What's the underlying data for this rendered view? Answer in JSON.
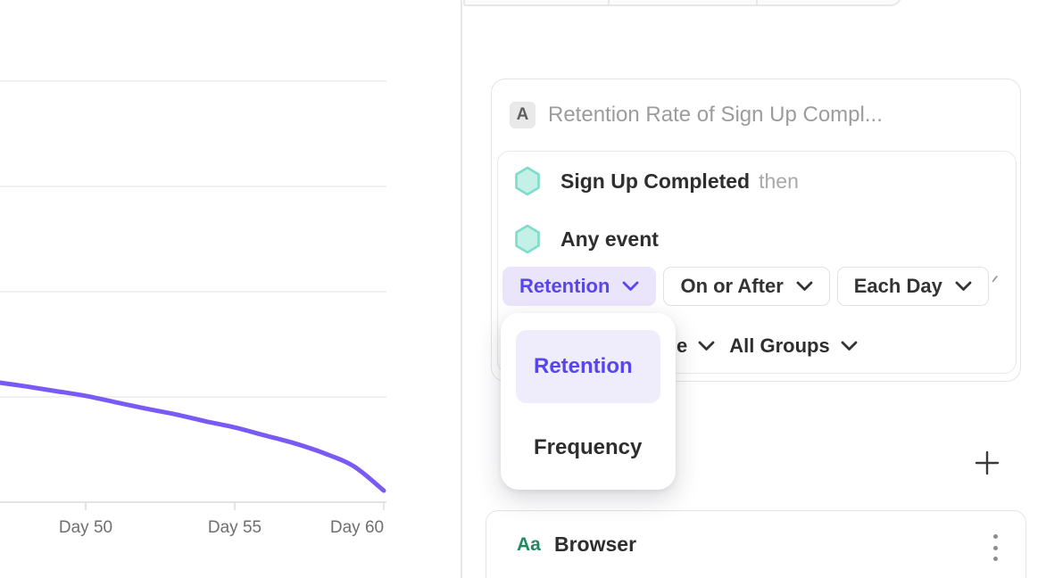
{
  "colors": {
    "accent_purple": "#5746EC",
    "accent_purple_bg": "#EAE5FB",
    "line_purple": "#7A5AF5",
    "event_hex_fill": "#C3F0E7",
    "event_hex_stroke": "#7EDCC9",
    "property_green": "#1F8A62",
    "text_dark": "#2E2E2E",
    "text_gray_placeholder": "#9C9C9C",
    "border_gray": "#E4E4E4"
  },
  "right_panel": {
    "query_card": {
      "series_badge": "A",
      "title_placeholder": "Retention Rate of Sign Up Compl...",
      "events": [
        {
          "name": "Sign Up Completed",
          "suffix": "then"
        },
        {
          "name": "Any event",
          "suffix": ""
        }
      ],
      "controls": [
        {
          "label": "Retention",
          "active": true
        },
        {
          "label": "On or After",
          "active": false
        },
        {
          "label": "Each Day",
          "active": false
        }
      ],
      "secondary_row": {
        "clipped_text": "e",
        "group_label": "All Groups"
      }
    },
    "measure_menu": {
      "items": [
        {
          "label": "Retention",
          "selected": true
        },
        {
          "label": "Frequency",
          "selected": false
        }
      ]
    },
    "add_button_label": "+",
    "breakdown_card": {
      "type_badge": "Aa",
      "label": "Browser"
    }
  },
  "chart_data": {
    "type": "line",
    "title": "",
    "xlabel": "",
    "ylabel": "",
    "x_tick_labels": [
      "Day 50",
      "Day 55",
      "Day 60"
    ],
    "x_tick_days": [
      50,
      55,
      60
    ],
    "xlim_days": [
      47,
      60.1
    ],
    "ylim_pct": [
      0,
      45
    ],
    "gridline_pcts": [
      10,
      20,
      30,
      40
    ],
    "y_axis_labels_visible": false,
    "grid": true,
    "legend": "none",
    "values_estimated": true,
    "series": [
      {
        "name": "Retention",
        "color": "#7A5AF5",
        "points_day_pct": [
          [
            47,
            11.4
          ],
          [
            48,
            11.0
          ],
          [
            49,
            10.55
          ],
          [
            50,
            10.1
          ],
          [
            51,
            9.5
          ],
          [
            52,
            8.9
          ],
          [
            53,
            8.35
          ],
          [
            54,
            7.7
          ],
          [
            55,
            7.1
          ],
          [
            56,
            6.35
          ],
          [
            57,
            5.6
          ],
          [
            58,
            4.65
          ],
          [
            59,
            3.4
          ],
          [
            60,
            1.1
          ]
        ]
      }
    ]
  }
}
